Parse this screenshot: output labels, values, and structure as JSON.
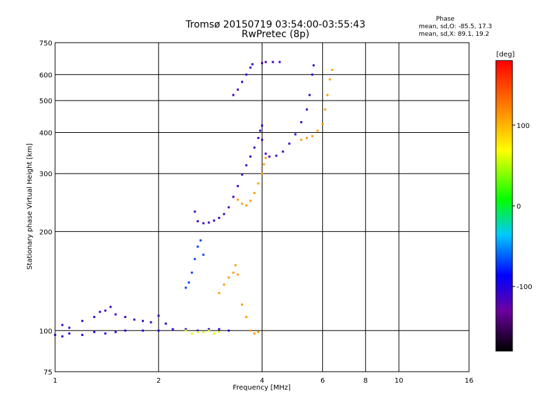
{
  "header": {
    "title_line1": "Tromsø 20150719 03:54:00-03:55:43",
    "title_line2": "RwPretec (8p)"
  },
  "phase_stats": {
    "heading": "Phase",
    "o_mode": "mean, sd,O: -85.5, 17.3",
    "x_mode": "mean, sd,X:  89.1, 19.2"
  },
  "chart_data": {
    "type": "scatter",
    "xlabel": "Frequency [MHz]",
    "ylabel": "Stationary phase Virtual Height [km]",
    "x_scale": "log",
    "y_scale": "log",
    "xlim": [
      1,
      16
    ],
    "ylim": [
      75,
      750
    ],
    "x_ticks": [
      1,
      2,
      4,
      6,
      8,
      10,
      16
    ],
    "x_tick_labels": [
      "1",
      "2",
      "4",
      "6",
      "8",
      "10",
      "16"
    ],
    "y_ticks": [
      75,
      100,
      200,
      300,
      400,
      500,
      600,
      750
    ],
    "y_tick_labels": [
      "75",
      "100",
      "200",
      "300",
      "400",
      "500",
      "600",
      "750"
    ],
    "grid": true,
    "colorbar": {
      "label": "[deg]",
      "range": [
        -180,
        180
      ],
      "ticks": [
        100,
        0,
        -100
      ],
      "tick_labels": [
        "100",
        "0",
        "-100"
      ],
      "colormap": [
        "#000000",
        "#6b00a0",
        "#0000ff",
        "#00c8ff",
        "#00ff00",
        "#ffff00",
        "#ff7f00",
        "#ff0000"
      ]
    },
    "series": [
      {
        "phase": -100,
        "points": [
          [
            1.0,
            97
          ],
          [
            1.05,
            96
          ],
          [
            1.1,
            98
          ],
          [
            1.2,
            97
          ],
          [
            1.3,
            99
          ],
          [
            1.4,
            98
          ],
          [
            1.5,
            99
          ],
          [
            1.6,
            100
          ],
          [
            1.8,
            100
          ],
          [
            2.0,
            100
          ],
          [
            2.2,
            101
          ],
          [
            2.4,
            101
          ],
          [
            2.6,
            100
          ],
          [
            2.8,
            101
          ],
          [
            3.0,
            101
          ],
          [
            3.2,
            100
          ]
        ]
      },
      {
        "phase": -110,
        "points": [
          [
            1.05,
            104
          ],
          [
            1.1,
            102
          ],
          [
            1.2,
            107
          ],
          [
            1.3,
            110
          ],
          [
            1.35,
            114
          ],
          [
            1.4,
            115
          ],
          [
            1.45,
            118
          ],
          [
            1.5,
            112
          ],
          [
            1.6,
            110
          ],
          [
            1.7,
            108
          ],
          [
            1.8,
            107
          ],
          [
            1.9,
            106
          ],
          [
            2.0,
            111
          ],
          [
            2.1,
            105
          ]
        ]
      },
      {
        "phase": -110,
        "points": [
          [
            2.55,
            230
          ],
          [
            2.6,
            215
          ],
          [
            2.7,
            212
          ],
          [
            2.8,
            213
          ],
          [
            2.9,
            216
          ],
          [
            3.0,
            220
          ],
          [
            3.1,
            226
          ],
          [
            3.2,
            237
          ],
          [
            3.3,
            255
          ],
          [
            3.4,
            275
          ],
          [
            3.5,
            298
          ],
          [
            3.6,
            318
          ],
          [
            3.7,
            338
          ],
          [
            3.8,
            360
          ],
          [
            3.9,
            385
          ],
          [
            3.95,
            405
          ],
          [
            4.0,
            420
          ]
        ]
      },
      {
        "phase": -110,
        "points": [
          [
            3.3,
            520
          ],
          [
            3.4,
            540
          ],
          [
            3.5,
            570
          ],
          [
            3.6,
            600
          ],
          [
            3.7,
            630
          ],
          [
            3.75,
            645
          ],
          [
            4.0,
            650
          ],
          [
            4.1,
            655
          ],
          [
            4.3,
            655
          ],
          [
            4.5,
            655
          ]
        ]
      },
      {
        "phase": -110,
        "points": [
          [
            4.0,
            380
          ],
          [
            4.1,
            345
          ],
          [
            4.2,
            338
          ],
          [
            4.4,
            340
          ],
          [
            4.6,
            350
          ],
          [
            4.8,
            370
          ],
          [
            5.0,
            395
          ],
          [
            5.2,
            430
          ],
          [
            5.4,
            470
          ],
          [
            5.5,
            520
          ],
          [
            5.6,
            600
          ],
          [
            5.65,
            640
          ]
        ]
      },
      {
        "phase": -70,
        "points": [
          [
            2.5,
            150
          ],
          [
            2.55,
            165
          ],
          [
            2.6,
            180
          ],
          [
            2.65,
            188
          ],
          [
            2.7,
            170
          ],
          [
            2.45,
            140
          ],
          [
            2.4,
            135
          ]
        ]
      },
      {
        "phase": 110,
        "points": [
          [
            3.4,
            250
          ],
          [
            3.5,
            243
          ],
          [
            3.6,
            240
          ],
          [
            3.7,
            248
          ],
          [
            3.8,
            262
          ],
          [
            3.9,
            280
          ],
          [
            4.0,
            300
          ],
          [
            4.05,
            320
          ],
          [
            4.1,
            335
          ]
        ]
      },
      {
        "phase": 110,
        "points": [
          [
            5.2,
            380
          ],
          [
            5.4,
            385
          ],
          [
            5.6,
            390
          ],
          [
            5.8,
            405
          ],
          [
            6.0,
            425
          ],
          [
            6.1,
            470
          ],
          [
            6.2,
            520
          ],
          [
            6.3,
            580
          ],
          [
            6.4,
            620
          ]
        ]
      },
      {
        "phase": 110,
        "points": [
          [
            3.0,
            130
          ],
          [
            3.1,
            138
          ],
          [
            3.2,
            145
          ],
          [
            3.3,
            150
          ],
          [
            3.35,
            158
          ],
          [
            3.4,
            148
          ],
          [
            3.5,
            120
          ],
          [
            3.6,
            110
          ],
          [
            3.7,
            100
          ],
          [
            3.8,
            98
          ],
          [
            3.9,
            99
          ]
        ]
      },
      {
        "phase": 60,
        "points": [
          [
            2.4,
            100
          ],
          [
            2.5,
            98
          ],
          [
            2.6,
            99
          ],
          [
            2.7,
            99
          ],
          [
            2.8,
            100
          ],
          [
            2.9,
            98
          ],
          [
            3.0,
            99
          ]
        ]
      }
    ]
  }
}
